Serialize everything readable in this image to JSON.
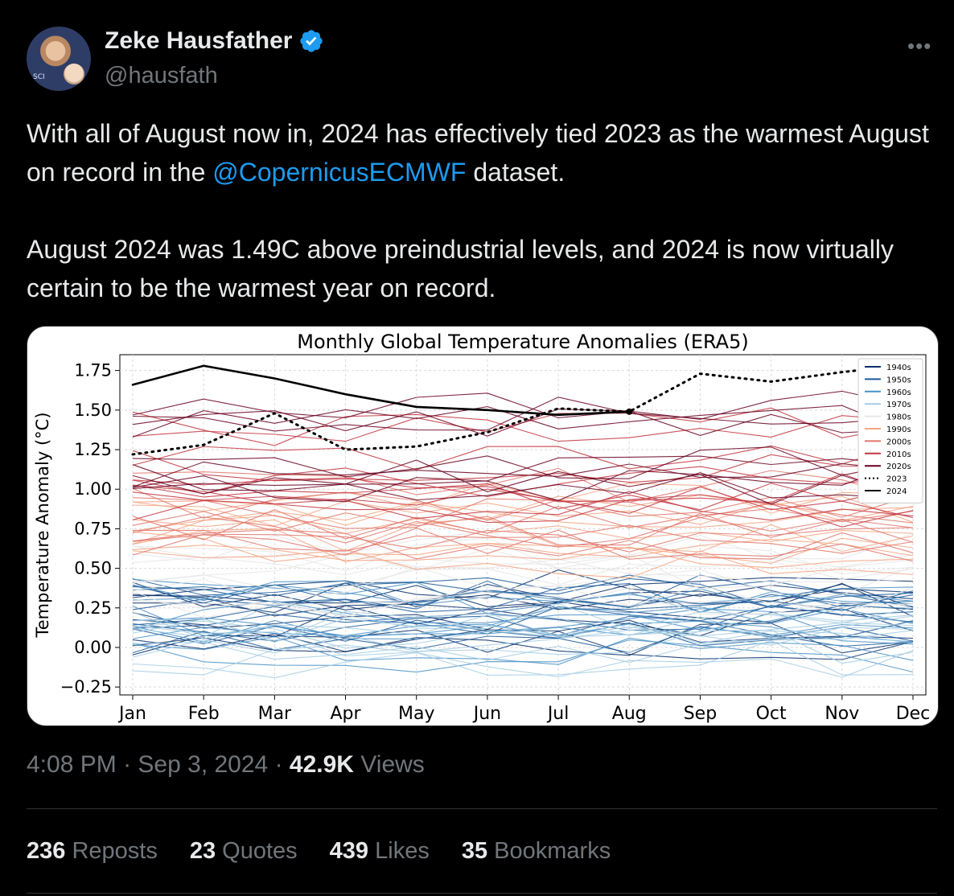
{
  "author": {
    "name": "Zeke Hausfather",
    "handle": "@hausfath",
    "avatar_shirt_text": "SCI",
    "verified_icon": "verified-badge-icon"
  },
  "tweet": {
    "line1_before": "With all of August now in, 2024 has effectively tied 2023 as the warmest August on record in the ",
    "mention": "@CopernicusECMWF",
    "line1_after": " dataset.",
    "para2": "August 2024 was 1.49C above preindustrial levels, and 2024 is now virtually certain to be the warmest year on record."
  },
  "meta": {
    "time": "4:08 PM",
    "sep": "·",
    "date": "Sep 3, 2024",
    "views_count": "42.9K",
    "views_label": "Views"
  },
  "stats": {
    "reposts_count": "236",
    "reposts_label": "Reposts",
    "quotes_count": "23",
    "quotes_label": "Quotes",
    "likes_count": "439",
    "likes_label": "Likes",
    "bookmarks_count": "35",
    "bookmarks_label": "Bookmarks"
  },
  "colors": {
    "accent": "#1d9bf0",
    "text": "#e7e9ea",
    "muted": "#71767b",
    "background": "#000000"
  },
  "chart_data": {
    "type": "line",
    "title": "Monthly Global Temperature Anomalies (ERA5)",
    "ylabel": "Temperature Anomaly (°C)",
    "xlabel": "",
    "categories": [
      "Jan",
      "Feb",
      "Mar",
      "Apr",
      "May",
      "Jun",
      "Jul",
      "Aug",
      "Sep",
      "Oct",
      "Nov",
      "Dec"
    ],
    "ylim": [
      -0.3,
      1.85
    ],
    "yticks": [
      -0.25,
      0.0,
      0.25,
      0.5,
      0.75,
      1.0,
      1.25,
      1.5,
      1.75
    ],
    "ytick_labels": [
      "−0.25",
      "0.00",
      "0.25",
      "0.50",
      "0.75",
      "1.00",
      "1.25",
      "1.50",
      "1.75"
    ],
    "grid": true,
    "legend_position": "top-right",
    "legend": [
      {
        "name": "1940s",
        "color": "#08306b",
        "style": "solid"
      },
      {
        "name": "1950s",
        "color": "#1c5a99",
        "style": "solid"
      },
      {
        "name": "1960s",
        "color": "#4a90c4",
        "style": "solid"
      },
      {
        "name": "1970s",
        "color": "#a6cee3",
        "style": "solid"
      },
      {
        "name": "1980s",
        "color": "#e8e8e8",
        "style": "solid"
      },
      {
        "name": "1990s",
        "color": "#f4a582",
        "style": "solid"
      },
      {
        "name": "2000s",
        "color": "#e0766b",
        "style": "solid"
      },
      {
        "name": "2010s",
        "color": "#c2343e",
        "style": "solid"
      },
      {
        "name": "2020s",
        "color": "#67001f",
        "style": "solid"
      },
      {
        "name": "2023",
        "color": "#000000",
        "style": "dotted"
      },
      {
        "name": "2024",
        "color": "#000000",
        "style": "solid"
      }
    ],
    "highlight_series": [
      {
        "name": "2024",
        "values": [
          1.66,
          1.78,
          1.7,
          1.6,
          1.52,
          1.5,
          1.47,
          1.49,
          null,
          null,
          null,
          null
        ]
      },
      {
        "name": "2023",
        "values": [
          1.22,
          1.28,
          1.48,
          1.25,
          1.27,
          1.36,
          1.51,
          1.49,
          1.73,
          1.68,
          1.74,
          1.79
        ]
      }
    ],
    "decade_bands": [
      {
        "decade": "1940s",
        "color": "#08306b",
        "low": 0.02,
        "high": 0.4
      },
      {
        "decade": "1950s",
        "color": "#1c5a99",
        "low": 0.02,
        "high": 0.36
      },
      {
        "decade": "1960s",
        "color": "#4a90c4",
        "low": -0.1,
        "high": 0.4
      },
      {
        "decade": "1970s",
        "color": "#a6cee3",
        "low": -0.12,
        "high": 0.45
      },
      {
        "decade": "1980s",
        "color": "#e6e6e6",
        "low": 0.25,
        "high": 0.65
      },
      {
        "decade": "1990s",
        "color": "#f4a582",
        "low": 0.5,
        "high": 0.95
      },
      {
        "decade": "2000s",
        "color": "#e0766b",
        "low": 0.65,
        "high": 1.05
      },
      {
        "decade": "2010s",
        "color": "#c2343e",
        "low": 0.8,
        "high": 1.45
      },
      {
        "decade": "2020s",
        "color": "#67001f",
        "low": 1.0,
        "high": 1.55
      }
    ],
    "annotations": []
  }
}
